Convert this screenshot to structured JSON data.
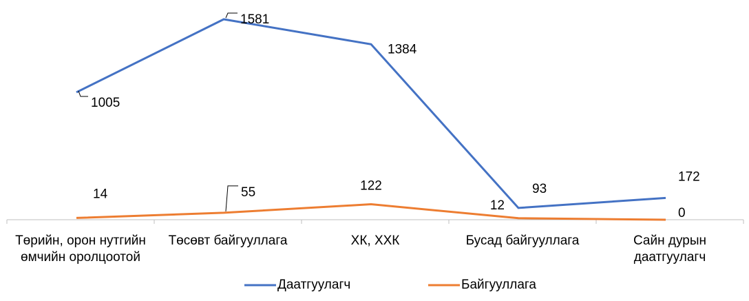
{
  "chart_data": {
    "type": "line",
    "categories": [
      [
        "Төрийн, орон нутгийн",
        "өмчийн  оролцоотой"
      ],
      [
        "Төсөвт байгууллага"
      ],
      [
        "ХК, ХХК"
      ],
      [
        "Бусад байгууллага"
      ],
      [
        "Сайн дурын",
        "даатгуулагч"
      ]
    ],
    "series": [
      {
        "name": "Даатгуулагч",
        "color": "#4472c4",
        "values": [
          1005,
          1581,
          1384,
          93,
          172
        ]
      },
      {
        "name": "Байгууллага",
        "color": "#ed7d31",
        "values": [
          14,
          55,
          122,
          12,
          0
        ]
      }
    ],
    "ylim": [
      0,
      1600
    ],
    "legend": "bottom"
  }
}
